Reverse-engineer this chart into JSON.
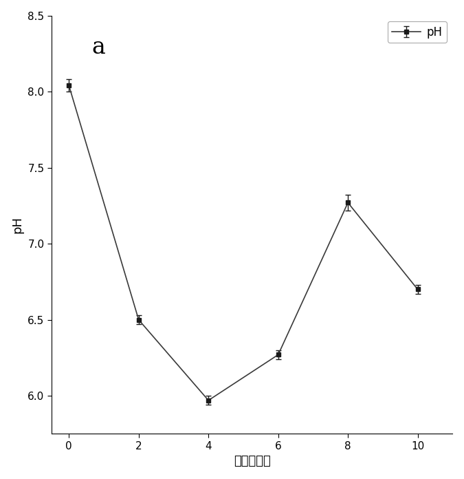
{
  "x": [
    0,
    2,
    4,
    6,
    8,
    10
  ],
  "y": [
    8.04,
    6.5,
    5.97,
    6.27,
    7.27,
    6.7
  ],
  "yerr": [
    0.04,
    0.03,
    0.03,
    0.03,
    0.05,
    0.03
  ],
  "xlabel": "时间（天）",
  "ylabel": "pH",
  "label": "pH",
  "annotation": "a",
  "xlim": [
    -0.5,
    11.0
  ],
  "ylim": [
    5.75,
    8.5
  ],
  "yticks": [
    6.0,
    6.5,
    7.0,
    7.5,
    8.0,
    8.5
  ],
  "xticks": [
    0,
    2,
    4,
    6,
    8,
    10
  ],
  "line_color": "#3a3a3a",
  "marker": "s",
  "marker_color": "#1a1a1a",
  "marker_size": 5,
  "line_width": 1.2,
  "background_color": "#ffffff",
  "figsize": [
    6.75,
    6.96
  ],
  "dpi": 100
}
